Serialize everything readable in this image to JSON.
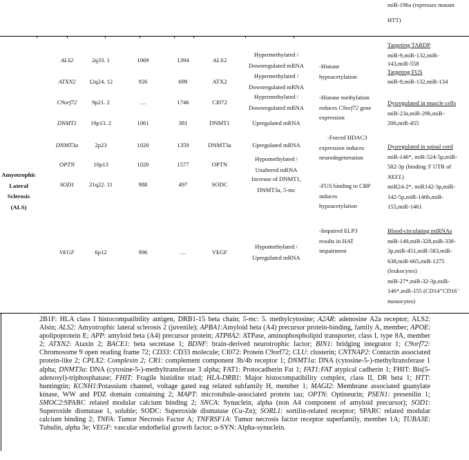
{
  "prev_row_mirna": [
    "miR-196a (represses mutant",
    "HTT)"
  ],
  "disease": [
    "Amyotrophic",
    "Lateral",
    "Sclerosis",
    "(ALS)"
  ],
  "rows": [
    {
      "gene": "ALS2",
      "locus": "2q33. 1",
      "n1": "1069",
      "n2": "1394",
      "protein": "ALS2",
      "expr": [
        "Hypermethylated /",
        "Downregulated mRNA"
      ]
    },
    {
      "gene": "ATXN2",
      "locus": "12q24. 12",
      "n1": "926",
      "n2": "699",
      "protein": "ATX2",
      "expr": [
        "Hypermethylated /",
        "Downregulated mRNA"
      ]
    },
    {
      "gene": "C9orf72",
      "locus": "9p21. 2",
      "n1": "…",
      "n2": "1746",
      "protein": "CI072",
      "expr": [
        "Hypermethylated /",
        "Downregulated mRNA"
      ]
    },
    {
      "gene": "DNMT1",
      "locus": "19p13. 2",
      "n1": "1061",
      "n2": "381",
      "protein": "DNMT1",
      "expr": [
        "Upregulated mRNA"
      ]
    },
    {
      "gene": "DNMT3a",
      "locus": "2p23",
      "n1": "1020",
      "n2": "1359",
      "protein": "DNMT3a",
      "expr": [
        "Upregulated mRNA"
      ]
    },
    {
      "gene": "OPTN",
      "locus": "10p13",
      "n1": "1020",
      "n2": "1577",
      "protein": "OPTN",
      "expr": [
        "Hypomethylated /",
        "Unaltered mRNA"
      ]
    },
    {
      "gene": "SOD1",
      "locus": "21q22. 11",
      "n1": "988",
      "n2": "497",
      "protein": "SODC",
      "expr": [
        "Increase of DNMT1,",
        "DNMT3a, 5-mc"
      ]
    },
    {
      "gene": "VEGF",
      "locus": "6p12",
      "n1": "996",
      "n2": "…",
      "protein": "VEGF",
      "expr": [
        "Hypomethylated /",
        "Upregulated mRNA"
      ]
    }
  ],
  "histone": {
    "h1": [
      "-Histone",
      "hypoacetylation"
    ],
    "h2a": "-Histone methylation",
    "h2b": "reduces ",
    "h2c": "C9orf72",
    "h2d": " gene",
    "h2e": "expression",
    "h3": [
      "-Forced HDAC3",
      "expression induces",
      "neurodegeneration"
    ],
    "h4": [
      "-FUS binding to CBP",
      "induces",
      "hypoacetylation"
    ],
    "h5": [
      "-Impaired ELP3",
      "results in HAT",
      "impairment"
    ]
  },
  "mirna": {
    "g1_title": "Targeting TARDP",
    "g1": [
      "miR-9,miR-132,miR-",
      "143,miR-558"
    ],
    "g2_title": "Targeting FUS",
    "g2": [
      "miR-9,miR-132,miR-134"
    ],
    "g3_title": "Dysregulated in muscle cells",
    "g3": [
      "miR-23a,miR-29b,miR-",
      "206,miR-455"
    ],
    "g4_title": "Dysregulated in spinal cord",
    "g4a": [
      "miR-146*, miR-524-5p,miR-",
      "582-3p (binding 3' UTR of"
    ],
    "g4b": "NEFL",
    "g4c": ")",
    "g4d": [
      "miR24-2*, miR142-3p,miR-",
      "142-5p,miR-146b,miR-",
      "155,miR-1461"
    ],
    "g5_title": "Blood-circulating miRNAs",
    "g5": [
      "miR-149,miR-328,miR-338-",
      "3p,miR-451,miR-583,miR-",
      "638,miR-665,miR-1275",
      "(leukocytes)",
      "miR-27*,miR-32-3p,miR-",
      "146*,miR-155 (CD14⁺CD16⁻",
      "monocytes)"
    ]
  },
  "footnote": "2B1F: HLA class I histocompatibility antigen, DRB1-15 beta chain; 5-mc: 5. methylcytosine; A2AR: adenosine A2a receptor; ALS2: Alsin; ALS2: Amyotrophic lateral sclerosis 2 (juvenile); APBA1:Amyloid beta (A4) precursor protein-binding, family A, member; APOE: apolipoprotein E; APP: amyloid beta (A4) precursor protein; ATP8A2: ATPase, aminophospholipid transporter, class I, type 8A, member 2; ATXN2: Ataxin 2; BACE1: beta secretase 1; BDNF: brain-derived neurotrophic factor; BIN1: bridging integrator 1; C9orf72: Chromosome 9 open reading frame 72; CD33: CD33 molecule; CI072: Protein C9orf72; CLU: clusterin; CNTNAP2: Contactin associated protein-like 2; CPLX2: Complexin 2; CR1: complement component 3b/4b receptor 1; DNMT1a: DNA (cytosine-5-)-methyltransferase 1 alpha; DNMT3a: DNA (cytosine-5-)-methyltransferase 3 alpha; FAT1: Protocadherin Fat 1; FAT1:FAT atypical cadherin 1; FHIT: Bis(5-adenosyl)-triphosphatase; FHIT: Fragile histidine triad; HLA-DRB1: Major histocompatibility complex, class II, DR beta 1; HTT: huntingtin; KCNH1:Potassium channel, voltage gated eag related subfamily H, member 1; MAGI2: Membrane associated guanylate kinase, WW and PDZ domain containing 2; MAPT: microtubule-associated protein tau; OPTN: Optineurin; PSEN1: presenilin 1; SMOC2:SPARC related modular calcium binding 2; SNCA: Synuclein, alpha (non A4 component of amyloid precursor); SOD1: Superoxide dismutase 1, soluble; SODC: Superoxide dismutase (Cu-Zn); SORL1: sortilin-related receptor; SPARC related modular calcium binding 2; TNFA: Tumor Necrosis Factor A; TNFRSF1A: Tumor necrosis factor receptor superfamily, member 1A; TUBA3E: Tubulin, alpha 3e; VEGF: vascular endothelial growth factor; α-SYN: Alpha-synuclein.",
  "footnote_italic_terms": [
    "5-mc",
    "A2AR",
    "ALS2:",
    "APBA1",
    "APOE",
    "APP",
    "ATP8A2",
    "ATXN2",
    "BACE1",
    "BDNF",
    "BIN1",
    "C9orf72:",
    "CD33:",
    "CLU",
    "CNTNAP2",
    "CPLX2",
    "Complexin 2;",
    "CR1",
    "DNMT1a",
    "DNMT3a",
    "FAT1:FAT",
    "FHIT:",
    "HLA-DRB1",
    "HTT",
    "KCNH1",
    "MAGI2",
    "MAPT",
    "OPTN",
    "PSEN1",
    "SMOC2",
    "SNCA",
    "SOD1",
    "SORL1",
    "TNFA",
    "TNFRSF1A",
    "TUBA3E",
    "VEGF"
  ]
}
